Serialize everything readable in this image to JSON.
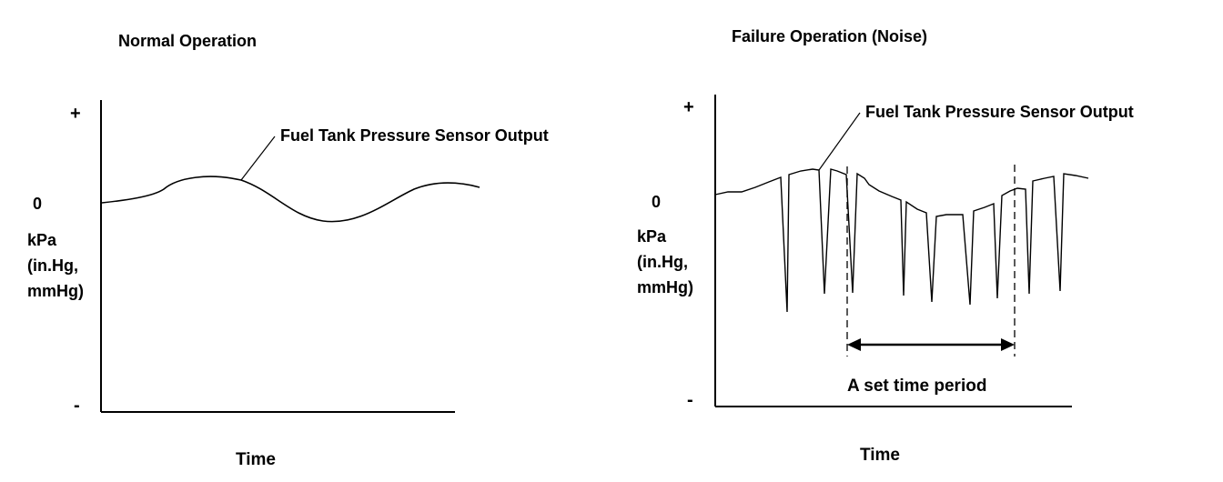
{
  "left_panel": {
    "title": "Normal Operation",
    "y_plus": "+",
    "y_zero": "0",
    "y_minus": "-",
    "y_unit_lines": [
      "kPa",
      "(in.Hg,",
      "mmHg)"
    ],
    "x_label": "Time",
    "curve_label": "Fuel Tank Pressure Sensor Output"
  },
  "right_panel": {
    "title": "Failure Operation (Noise)",
    "y_plus": "+",
    "y_zero": "0",
    "y_minus": "-",
    "y_unit_lines": [
      "kPa",
      "(in.Hg,",
      "mmHg)"
    ],
    "x_label": "Time",
    "curve_label": "Fuel Tank Pressure Sensor Output",
    "period_label": "A set time period"
  },
  "colors": {
    "line": "#000000",
    "background": "#ffffff"
  }
}
